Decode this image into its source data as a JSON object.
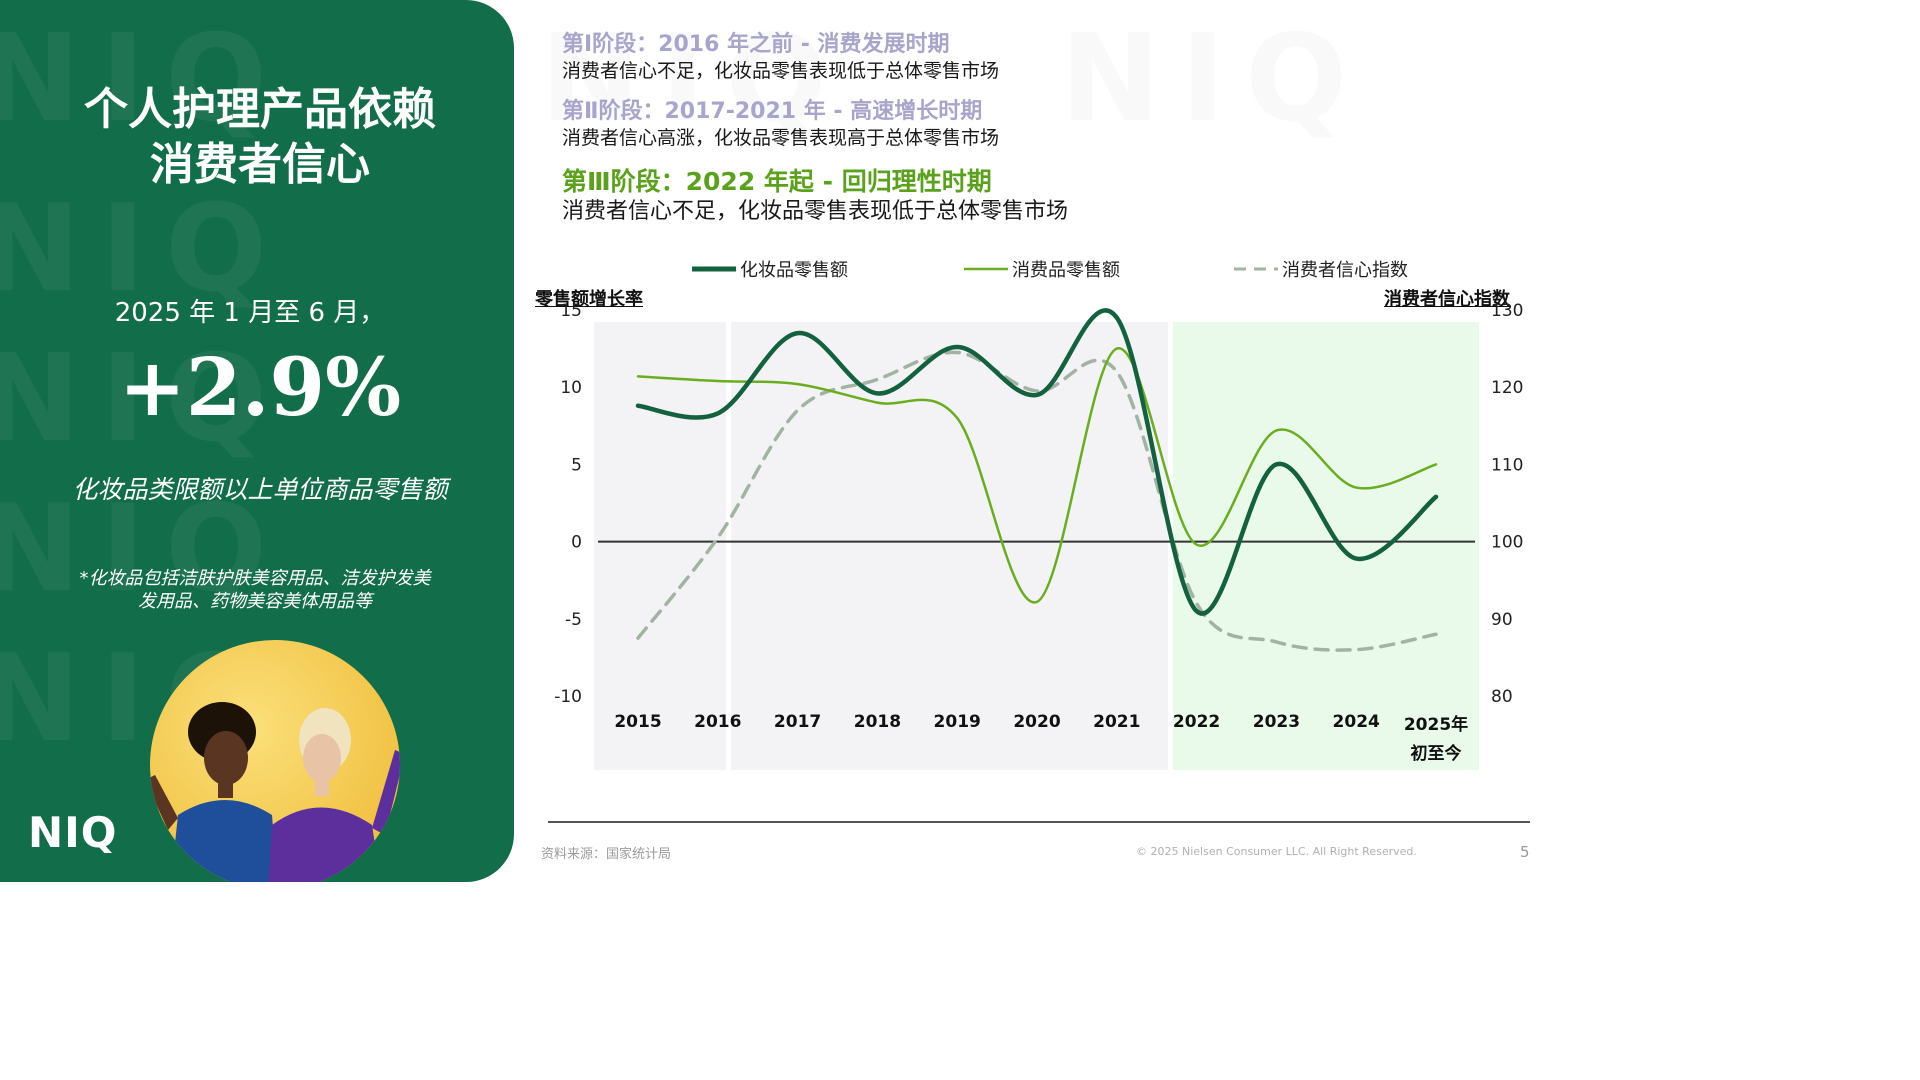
{
  "left": {
    "title_line1": "个人护理产品依赖",
    "title_line2": "消费者信心",
    "period": "2025 年 1 月至 6 月，",
    "growth": "+2.9%",
    "metric_label": "化妆品类限额以上单位商品零售额",
    "footnote_line1": "*化妆品包括洁肤护肤美容用品、洁发护发美",
    "footnote_line2": "发用品、药物美容美体用品等",
    "logo": "NIQ",
    "watermark": "NIQ"
  },
  "phases": [
    {
      "title": "第Ⅰ阶段：2016 年之前 - 消费发展时期",
      "desc": "消费者信心不足，化妆品零售表现低于总体零售市场"
    },
    {
      "title": "第Ⅱ阶段：2017-2021 年 - 高速增长时期",
      "desc": "消费者信心高涨，化妆品零售表现高于总体零售市场"
    },
    {
      "title": "第Ⅲ阶段：2022 年起 - 回归理性时期",
      "desc": "消费者信心不足，化妆品零售表现低于总体零售市场"
    }
  ],
  "footer": {
    "source": "资料来源：国家统计局",
    "copyright": "© 2025 Nielsen Consumer LLC. All Right Reserved.",
    "page": "5"
  },
  "colors": {
    "panel": "#126d4a",
    "cosmetics": "#14613f",
    "consumer_goods": "#6aad1f",
    "confidence": "#a3b3a3",
    "phase12_title": "#a8a5cc",
    "phase3_title": "#5aa21c",
    "phase3_band": "#eafaea",
    "phase12_band": "#f3f3f5"
  },
  "chart_data": {
    "type": "line",
    "categories": [
      "2015",
      "2016",
      "2017",
      "2018",
      "2019",
      "2020",
      "2021",
      "2022",
      "2023",
      "2024",
      "2025年初至今"
    ],
    "y_left_label": "零售额增长率",
    "y_right_label": "消费者信心指数",
    "y_left_range": [
      -10,
      15
    ],
    "y_left_ticks": [
      "15",
      "10",
      "5",
      "0",
      "-5",
      "-10"
    ],
    "y_right_range": [
      80,
      130
    ],
    "y_right_ticks": [
      "130",
      "120",
      "110",
      "100",
      "90",
      "80"
    ],
    "series": [
      {
        "name": "化妆品零售额",
        "axis": "left",
        "style": "solid-thick",
        "values": [
          8.8,
          8.3,
          13.5,
          9.6,
          12.6,
          9.5,
          14.5,
          -4.5,
          5.0,
          -1.1,
          2.9
        ]
      },
      {
        "name": "消费品零售额",
        "axis": "left",
        "style": "solid-thin",
        "values": [
          10.7,
          10.4,
          10.2,
          9.0,
          8.0,
          -3.9,
          12.5,
          -0.2,
          7.2,
          3.5,
          5.0
        ]
      },
      {
        "name": "消费者信心指数",
        "axis": "right",
        "style": "dashed",
        "values": [
          87.5,
          100.5,
          117.0,
          121.0,
          124.5,
          119.5,
          122.0,
          92.0,
          87.0,
          86.0,
          88.0
        ]
      }
    ],
    "legend_position": "top",
    "grid": false
  }
}
